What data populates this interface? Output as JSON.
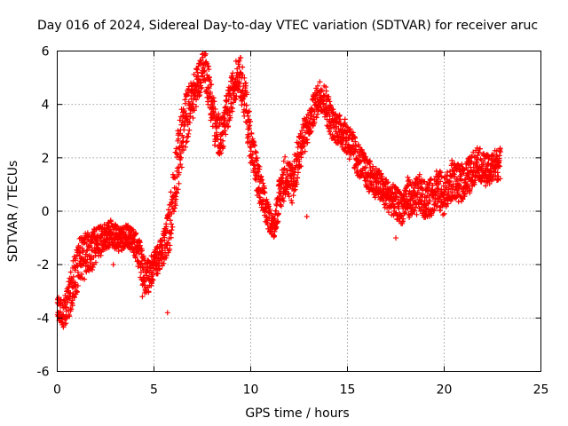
{
  "chart_data": {
    "type": "scatter",
    "title": "Day 016 of 2024, Sidereal Day-to-day VTEC variation (SDTVAR) for receiver aruc",
    "xlabel": "GPS time / hours",
    "ylabel": "SDTVAR / TECUs",
    "xlim": [
      0,
      25
    ],
    "ylim": [
      -6,
      6
    ],
    "xticks": [
      0,
      5,
      10,
      15,
      20,
      25
    ],
    "yticks": [
      -6,
      -4,
      -2,
      0,
      2,
      4,
      6
    ],
    "xtick_labels": [
      "0",
      "5",
      "10",
      "15",
      "20",
      "25"
    ],
    "ytick_labels": [
      "-6",
      "-4",
      "-2",
      "0",
      "2",
      "4",
      "6"
    ],
    "grid": true,
    "marker": "plus",
    "series": [
      {
        "name": "SDTVAR",
        "color": "#ff0000",
        "trace_knots": {
          "x": [
            0.0,
            0.3,
            0.6,
            0.9,
            1.2,
            1.6,
            2.0,
            2.4,
            2.8,
            3.2,
            3.6,
            4.0,
            4.3,
            4.6,
            5.0,
            5.4,
            5.8,
            6.1,
            6.4,
            6.7,
            7.0,
            7.3,
            7.6,
            7.9,
            8.2,
            8.5,
            8.8,
            9.1,
            9.4,
            9.7,
            10.0,
            10.3,
            10.6,
            10.9,
            11.2,
            11.5,
            11.8,
            12.1,
            12.4,
            12.7,
            13.0,
            13.3,
            13.6,
            13.9,
            14.2,
            14.5,
            14.8,
            15.1,
            15.4,
            15.7,
            16.0,
            16.3,
            16.6,
            16.9,
            17.2,
            17.5,
            17.8,
            18.1,
            18.4,
            18.7,
            19.0,
            19.3,
            19.6,
            19.9,
            20.2,
            20.5,
            20.8,
            21.1,
            21.4,
            21.7,
            22.0,
            22.3,
            22.6,
            22.9
          ],
          "y": [
            -3.6,
            -3.9,
            -3.3,
            -2.4,
            -1.8,
            -1.6,
            -1.3,
            -1.0,
            -0.8,
            -1.1,
            -0.9,
            -1.2,
            -1.8,
            -2.6,
            -2.0,
            -1.6,
            -0.6,
            1.3,
            2.6,
            3.6,
            4.2,
            4.9,
            5.6,
            4.4,
            3.0,
            2.8,
            3.7,
            4.6,
            5.3,
            4.2,
            2.6,
            1.4,
            0.5,
            -0.2,
            -0.6,
            0.6,
            1.4,
            1.0,
            1.8,
            2.7,
            3.2,
            3.9,
            4.4,
            4.0,
            3.3,
            3.1,
            2.9,
            2.6,
            2.1,
            1.8,
            1.4,
            1.2,
            1.0,
            0.7,
            0.5,
            0.3,
            0.1,
            0.6,
            0.3,
            0.7,
            0.4,
            0.5,
            0.9,
            0.6,
            0.8,
            1.2,
            1.0,
            1.2,
            1.4,
            1.9,
            1.6,
            1.5,
            1.7,
            1.8
          ],
          "spread": [
            0.5,
            0.5,
            0.7,
            0.9,
            0.9,
            0.8,
            0.7,
            0.5,
            0.5,
            0.5,
            0.4,
            0.5,
            0.7,
            0.7,
            0.5,
            0.6,
            0.9,
            1.2,
            1.2,
            1.0,
            0.8,
            0.7,
            0.7,
            0.9,
            0.8,
            0.7,
            0.8,
            0.7,
            0.7,
            0.9,
            0.8,
            0.8,
            0.7,
            0.5,
            0.4,
            0.7,
            0.8,
            0.8,
            0.8,
            0.7,
            0.6,
            0.6,
            0.6,
            0.7,
            0.6,
            0.6,
            0.6,
            0.7,
            0.7,
            0.6,
            0.6,
            0.6,
            0.6,
            0.6,
            0.6,
            0.6,
            0.6,
            0.7,
            0.8,
            0.7,
            0.7,
            0.7,
            0.8,
            0.8,
            0.7,
            0.7,
            0.7,
            0.7,
            0.7,
            0.6,
            0.6,
            0.6,
            0.6,
            0.6
          ]
        },
        "outliers": [
          {
            "x": 17.5,
            "y": -1.0
          },
          {
            "x": 2.9,
            "y": -2.0
          },
          {
            "x": 19.0,
            "y": -0.1
          },
          {
            "x": 4.4,
            "y": -3.2
          },
          {
            "x": 5.7,
            "y": -3.8
          },
          {
            "x": 20.4,
            "y": 1.9
          },
          {
            "x": 12.9,
            "y": -0.2
          }
        ]
      }
    ]
  }
}
